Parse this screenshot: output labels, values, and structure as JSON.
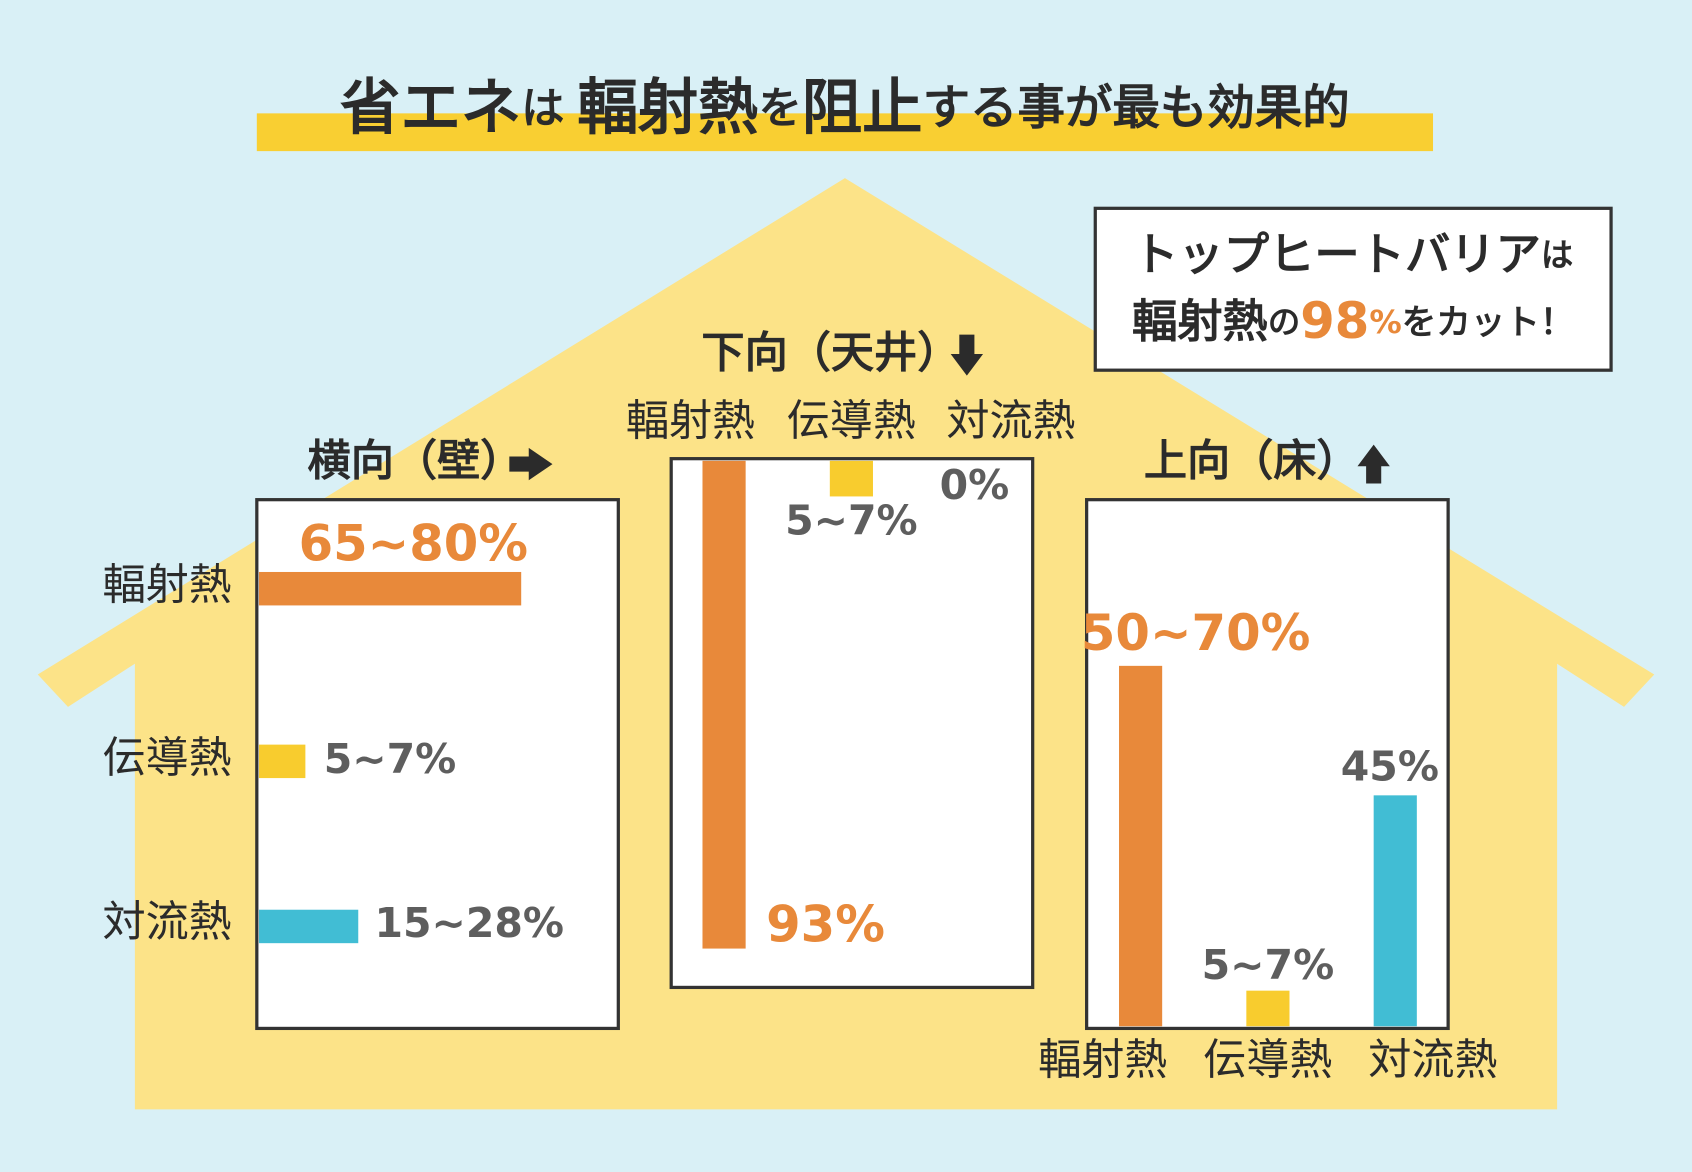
{
  "title": {
    "parts": [
      "省エネ",
      "は",
      "輻射熱",
      "を",
      "阻止",
      "する事が最も効果的"
    ]
  },
  "callout": {
    "line1": [
      "トップヒートバリア",
      "は"
    ],
    "line2": [
      "輻射熱",
      "の",
      "98",
      "%",
      "をカット！"
    ]
  },
  "panels": [
    {
      "heading": "横向（壁）",
      "rows": [
        {
          "label": "輻射熱",
          "value": "65~80%"
        },
        {
          "label": "伝導熱",
          "value": "5~7%"
        },
        {
          "label": "対流熱",
          "value": "15~28%"
        }
      ]
    },
    {
      "heading": "下向（天井）",
      "rows": [
        {
          "label": "輻射熱",
          "value": "93%"
        },
        {
          "label": "伝導熱",
          "value": "5~7%"
        },
        {
          "label": "対流熱",
          "value": "0%"
        }
      ]
    },
    {
      "heading": "上向（床）",
      "rows": [
        {
          "label": "輻射熱",
          "value": "50~70%"
        },
        {
          "label": "伝導熱",
          "value": "5~7%"
        },
        {
          "label": "対流熱",
          "value": "45%"
        }
      ]
    }
  ]
}
